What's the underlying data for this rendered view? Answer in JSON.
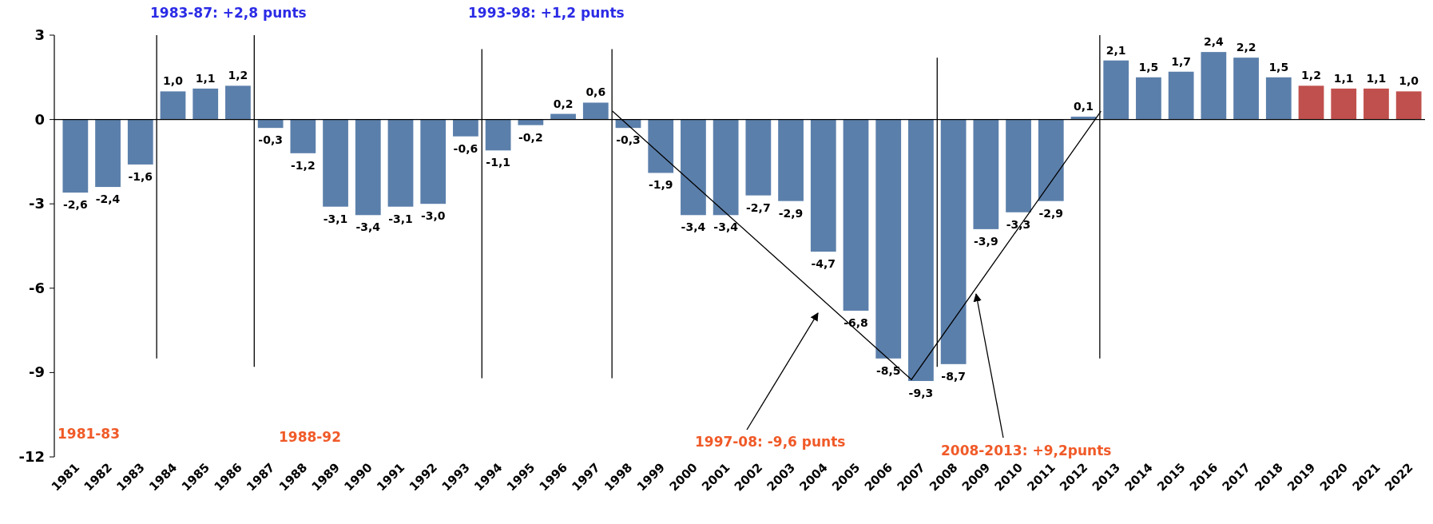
{
  "chart_data": {
    "type": "bar",
    "categories": [
      "1981",
      "1982",
      "1983",
      "1984",
      "1985",
      "1986",
      "1987",
      "1988",
      "1989",
      "1990",
      "1991",
      "1992",
      "1993",
      "1994",
      "1995",
      "1996",
      "1997",
      "1998",
      "1999",
      "2000",
      "2001",
      "2002",
      "2003",
      "2004",
      "2005",
      "2006",
      "2007",
      "2008",
      "2009",
      "2010",
      "2011",
      "2012",
      "2013",
      "2014",
      "2015",
      "2016",
      "2017",
      "2018",
      "2019",
      "2020",
      "2021",
      "2022"
    ],
    "values": [
      -2.6,
      -2.4,
      -1.6,
      1.0,
      1.1,
      1.2,
      -0.3,
      -1.2,
      -3.1,
      -3.4,
      -3.1,
      -3.0,
      -0.6,
      -1.1,
      -0.2,
      0.2,
      0.6,
      -0.3,
      -1.9,
      -3.4,
      -3.4,
      -2.7,
      -2.9,
      -4.7,
      -6.8,
      -8.5,
      -9.3,
      -8.7,
      -3.9,
      -3.3,
      -2.9,
      0.1,
      2.1,
      1.5,
      1.7,
      2.4,
      2.2,
      1.5,
      1.2,
      1.1,
      1.1,
      1.0
    ],
    "value_labels": [
      "-2,6",
      "-2,4",
      "-1,6",
      "1,0",
      "1,1",
      "1,2",
      "-0,3",
      "-1,2",
      "-3,1",
      "-3,4",
      "-3,1",
      "-3,0",
      "-0,6",
      "-1,1",
      "-0,2",
      "0,2",
      "0,6",
      "-0,3",
      "-1,9",
      "-3,4",
      "-3,4",
      "-2,7",
      "-2,9",
      "-4,7",
      "-6,8",
      "-8,5",
      "-9,3",
      "-8,7",
      "-3,9",
      "-3,3",
      "-2,9",
      "0,1",
      "2,1",
      "1,5",
      "1,7",
      "2,4",
      "2,2",
      "1,5",
      "1,2",
      "1,1",
      "1,1",
      "1,0"
    ],
    "colors": [
      "#5b7fab",
      "#5b7fab",
      "#5b7fab",
      "#5b7fab",
      "#5b7fab",
      "#5b7fab",
      "#5b7fab",
      "#5b7fab",
      "#5b7fab",
      "#5b7fab",
      "#5b7fab",
      "#5b7fab",
      "#5b7fab",
      "#5b7fab",
      "#5b7fab",
      "#5b7fab",
      "#5b7fab",
      "#5b7fab",
      "#5b7fab",
      "#5b7fab",
      "#5b7fab",
      "#5b7fab",
      "#5b7fab",
      "#5b7fab",
      "#5b7fab",
      "#5b7fab",
      "#5b7fab",
      "#5b7fab",
      "#5b7fab",
      "#5b7fab",
      "#5b7fab",
      "#5b7fab",
      "#5b7fab",
      "#5b7fab",
      "#5b7fab",
      "#5b7fab",
      "#5b7fab",
      "#5b7fab",
      "#c0504d",
      "#c0504d",
      "#c0504d",
      "#c0504d"
    ],
    "ylim": [
      -12,
      3
    ],
    "yticks": [
      3,
      0,
      -3,
      -6,
      -9,
      -12
    ],
    "grid": false,
    "ref_lines": [
      {
        "axis": "x",
        "value": "1984",
        "color": "#000000"
      },
      {
        "axis": "x",
        "value": "1987",
        "color": "#000000"
      },
      {
        "axis": "x",
        "value": "1994",
        "color": "#000000"
      },
      {
        "axis": "x",
        "value": "1998",
        "color": "#000000"
      },
      {
        "axis": "x",
        "value": "2008",
        "color": "#000000"
      },
      {
        "axis": "x",
        "value": "2013",
        "color": "#000000"
      }
    ],
    "annotations": [
      "1983-87: +2,8 punts",
      "1993-98: +1,2 punts",
      "1981-83",
      "1988-92",
      "1997-08: -9,6 punts",
      "2008-2013: +9,2punts"
    ]
  }
}
